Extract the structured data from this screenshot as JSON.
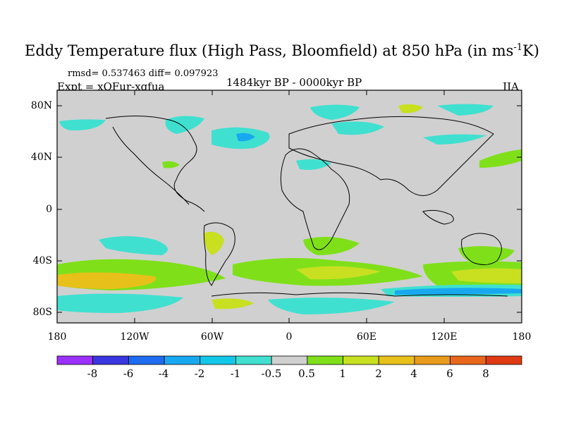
{
  "title_main": "Eddy Temperature flux (High Pass, Bloomfield) at 850 hPa (in ms",
  "title_sup": "-1",
  "title_end": "K)",
  "stats": "rmsd= 0.537463 diff= 0.097923",
  "experiment": "Expt = xQFur-xqfua",
  "period": "1484kyr BP - 0000kyr BP",
  "season": "JJA",
  "lat_labels": [
    "80N",
    "40N",
    "0",
    "40S",
    "80S"
  ],
  "lon_labels": [
    "180",
    "120W",
    "60W",
    "0",
    "60E",
    "120E",
    "180"
  ],
  "colorbar": {
    "labels": [
      "-8",
      "-6",
      "-4",
      "-2",
      "-1",
      "-0.5",
      "0.5",
      "1",
      "2",
      "4",
      "6",
      "8"
    ],
    "colors": [
      "#9b30ff",
      "#3a36e0",
      "#1e6cf0",
      "#18a8f0",
      "#12c8e8",
      "#40e0d0",
      "#d0d0d0",
      "#7fe01a",
      "#c8e020",
      "#e8c01a",
      "#e89a1a",
      "#e8661a",
      "#e03a14"
    ]
  },
  "colors": {
    "ocean": "#d0d0d0",
    "coast": "#000000"
  }
}
